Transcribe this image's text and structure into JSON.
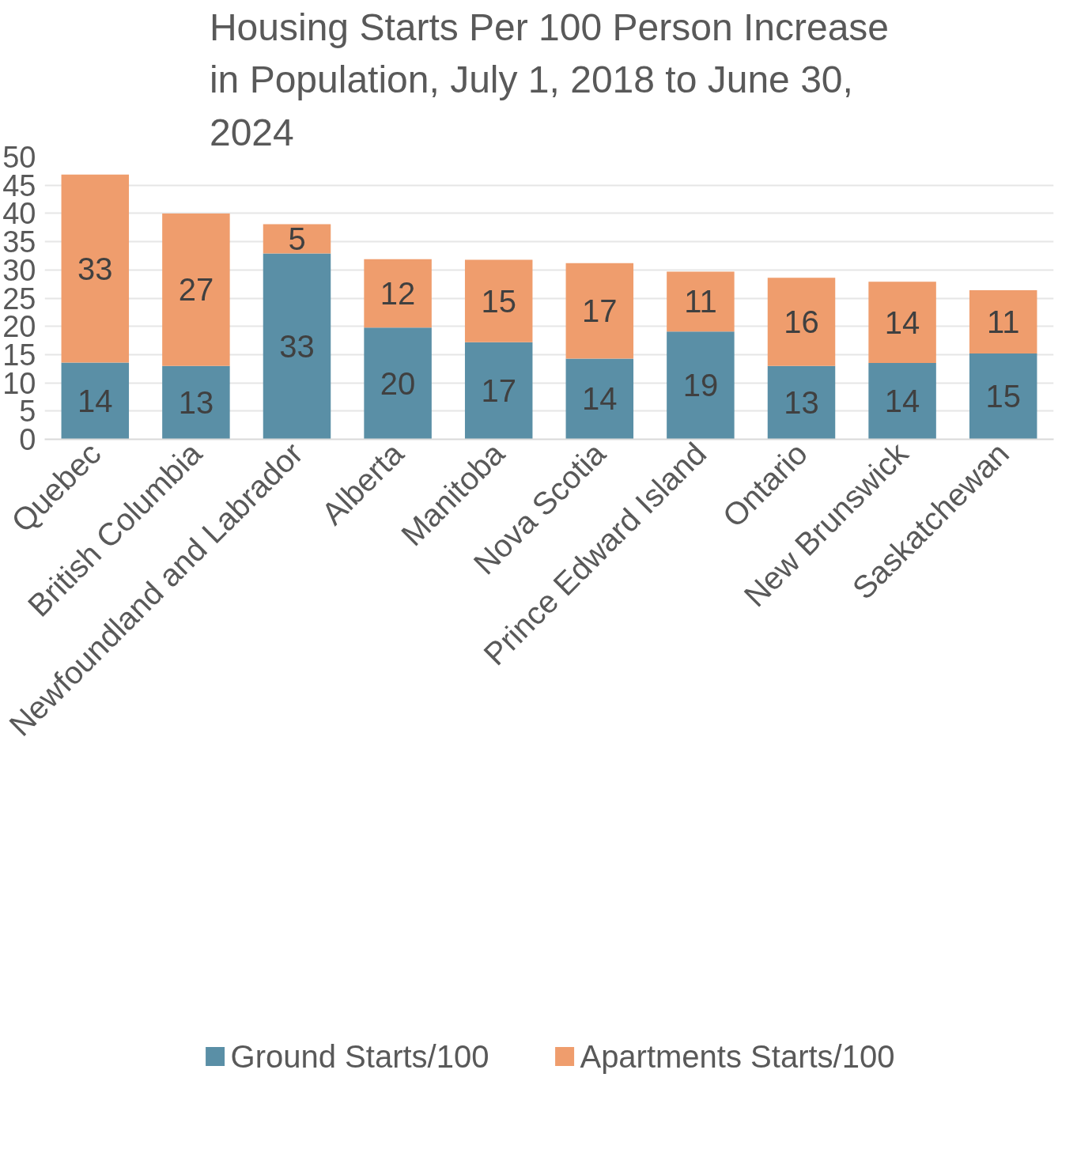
{
  "chart_data": {
    "type": "bar",
    "title": "Housing Starts Per 100 Person Increase in Population, July 1, 2018 to June 30, 2024",
    "categories": [
      "Quebec",
      "British Columbia",
      "Newfoundland and Labrador",
      "Alberta",
      "Manitoba",
      "Nova Scotia",
      "Prince Edward Island",
      "Ontario",
      "New Brunswick",
      "Saskatchewan"
    ],
    "stacked": true,
    "series": [
      {
        "name": "Ground Starts/100",
        "color": "#5a8fa6",
        "values": [
          13.6,
          13.0,
          32.9,
          19.8,
          17.2,
          14.3,
          19.1,
          13.0,
          13.5,
          15.2
        ],
        "value_labels": [
          "14",
          "13",
          "33",
          "20",
          "17",
          "14",
          "19",
          "13",
          "14",
          "15"
        ]
      },
      {
        "name": "Apartments Starts/100",
        "color": "#ef9d6d",
        "values": [
          33.3,
          27.0,
          5.2,
          12.1,
          14.6,
          16.9,
          10.6,
          15.6,
          14.4,
          11.2
        ],
        "value_labels": [
          "33",
          "27",
          "5",
          "12",
          "15",
          "17",
          "11",
          "16",
          "14",
          "11"
        ]
      }
    ],
    "ylim": [
      0,
      50
    ],
    "yticks": [
      0,
      5,
      10,
      15,
      20,
      25,
      30,
      35,
      40,
      45,
      50
    ],
    "grid": "y",
    "legend": "bottom"
  }
}
